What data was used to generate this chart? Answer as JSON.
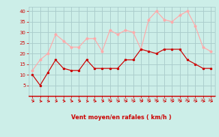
{
  "x": [
    0,
    1,
    2,
    3,
    4,
    5,
    6,
    7,
    8,
    9,
    10,
    11,
    12,
    13,
    14,
    15,
    16,
    17,
    18,
    19,
    20,
    21,
    22,
    23
  ],
  "rafales": [
    12,
    17,
    20,
    29,
    26,
    23,
    23,
    27,
    27,
    21,
    31,
    29,
    31,
    30,
    22,
    36,
    40,
    36,
    35,
    38,
    40,
    33,
    23,
    21
  ],
  "moyen": [
    10,
    5,
    11,
    17,
    13,
    12,
    12,
    17,
    13,
    13,
    13,
    13,
    17,
    17,
    22,
    21,
    20,
    22,
    22,
    22,
    17,
    15,
    13,
    13
  ],
  "color_rafales": "#ffaaaa",
  "color_moyen": "#cc0000",
  "bg_color": "#cceee8",
  "grid_color": "#aacccc",
  "xlabel": "Vent moyen/en rafales ( km/h )",
  "xlabel_color": "#cc0000",
  "tick_color": "#cc0000",
  "ylim": [
    0,
    42
  ],
  "yticks": [
    5,
    10,
    15,
    20,
    25,
    30,
    35,
    40
  ],
  "xticks": [
    0,
    1,
    2,
    3,
    4,
    5,
    6,
    7,
    8,
    9,
    10,
    11,
    12,
    13,
    14,
    15,
    16,
    17,
    18,
    19,
    20,
    21,
    22,
    23
  ],
  "spine_color": "#cc0000",
  "arrow_color": "#cc0000"
}
